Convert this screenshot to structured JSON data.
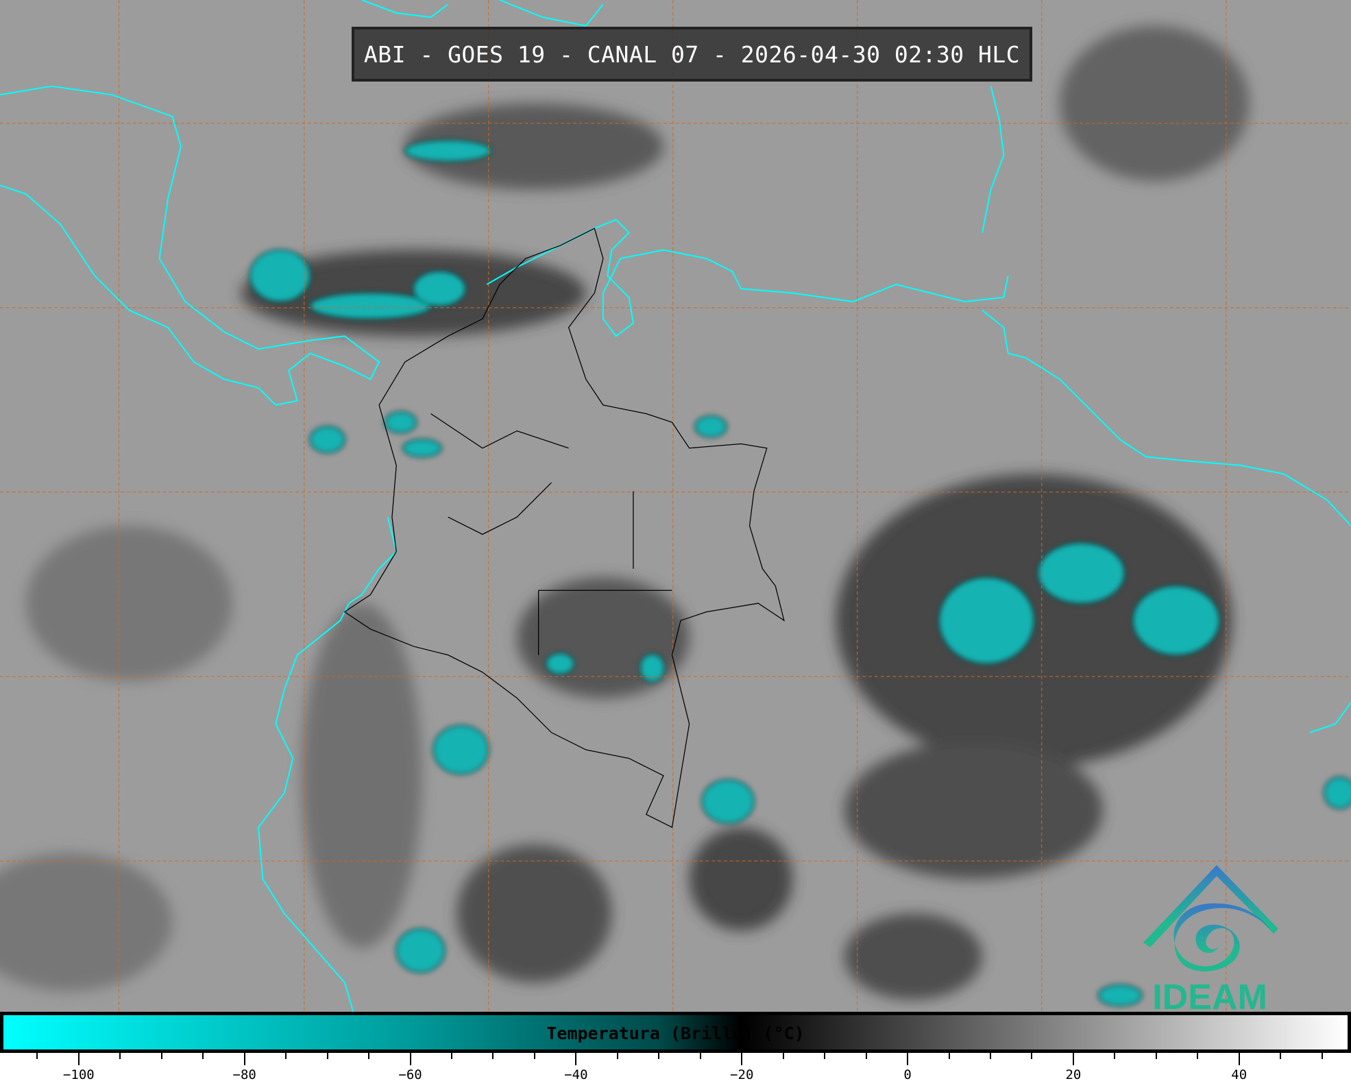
{
  "title": "ABI - GOES 19 - CANAL 07 - 2026-04-30 02:30 HLC",
  "logo": {
    "text": "IDEAM",
    "colors": [
      "#3a78c8",
      "#22b890"
    ]
  },
  "colors": {
    "coastline": "#00ffff",
    "borders": "#000000",
    "graticule": "#d2691e",
    "background": "#9a9a9a"
  },
  "colorbar": {
    "label": "Temperatura (Brillo) (°C)",
    "range": [
      -109.5,
      53.5
    ],
    "major_ticks": [
      -100,
      -80,
      -60,
      -40,
      -20,
      0,
      20,
      40
    ],
    "minor_step": 5,
    "stops": [
      {
        "value": -109.5,
        "color": "#00ffff"
      },
      {
        "value": -60,
        "color": "#009a9a"
      },
      {
        "value": -30,
        "color": "#004a4a"
      },
      {
        "value": -20,
        "color": "#000000"
      },
      {
        "value": 53.5,
        "color": "#ffffff"
      }
    ]
  }
}
